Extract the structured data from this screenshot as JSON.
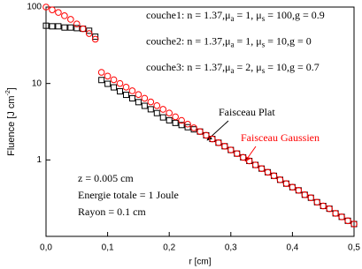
{
  "chart_data": {
    "type": "scatter",
    "xlabel": "r [cm]",
    "ylabel_parts": [
      "Fluence [J cm",
      "-2",
      "]"
    ],
    "x": [
      0,
      0.01,
      0.02,
      0.03,
      0.04,
      0.05,
      0.06,
      0.07,
      0.08,
      0.09,
      0.1,
      0.11,
      0.12,
      0.13,
      0.14,
      0.15,
      0.16,
      0.17,
      0.18,
      0.19,
      0.2,
      0.21,
      0.22,
      0.23,
      0.24,
      0.25,
      0.26,
      0.27,
      0.28,
      0.29,
      0.3,
      0.31,
      0.32,
      0.33,
      0.34,
      0.35,
      0.36,
      0.37,
      0.38,
      0.39,
      0.4,
      0.41,
      0.42,
      0.43,
      0.44,
      0.45,
      0.46,
      0.47,
      0.48,
      0.49,
      0.5
    ],
    "series": [
      {
        "name": "Faisceau Plat",
        "color": "#000000",
        "marker": "square",
        "values": [
          57,
          56,
          56,
          54,
          54,
          53,
          52,
          49,
          41,
          11.1,
          9.9,
          8.9,
          7.9,
          7.1,
          6.4,
          5.7,
          5.1,
          4.6,
          4.1,
          3.6,
          3.3,
          3.05,
          2.86,
          2.68,
          2.51,
          2.35,
          2.1,
          1.88,
          1.68,
          1.51,
          1.35,
          1.21,
          1.08,
          0.97,
          0.86,
          0.77,
          0.69,
          0.62,
          0.55,
          0.49,
          0.44,
          0.4,
          0.35,
          0.32,
          0.28,
          0.25,
          0.23,
          0.2,
          0.18,
          0.16,
          0.145
        ]
      },
      {
        "name": "Faisceau Gaussien",
        "color": "#ff0000",
        "marker": "circle",
        "values": [
          100,
          92,
          85,
          77,
          69,
          60,
          52,
          45,
          38,
          14.0,
          12.5,
          11.2,
          10.0,
          8.96,
          8.02,
          7.17,
          6.41,
          5.74,
          5.13,
          4.59,
          4.11,
          3.67,
          3.29,
          2.94,
          2.63,
          2.35,
          2.1,
          1.88,
          1.68,
          1.51,
          1.35,
          1.21,
          1.08,
          0.97,
          0.86,
          0.77,
          0.69,
          0.62,
          0.55,
          0.49,
          0.44,
          0.4,
          0.35,
          0.32,
          0.28,
          0.25,
          0.23,
          0.2,
          0.18,
          0.16,
          0.145
        ]
      }
    ],
    "xlim": [
      0,
      0.5
    ],
    "xticks": [
      {
        "value": 0,
        "label": "0,0"
      },
      {
        "value": 0.1,
        "label": "0,1"
      },
      {
        "value": 0.2,
        "label": "0,2"
      },
      {
        "value": 0.3,
        "label": "0,3"
      },
      {
        "value": 0.4,
        "label": "0,4"
      },
      {
        "value": 0.5,
        "label": "0,5"
      }
    ],
    "ylim": [
      0.1,
      100
    ],
    "yticks": [
      1,
      10,
      100
    ],
    "log_y": true,
    "grid": false,
    "layer_notes": [
      [
        "couche1: n = 1.37,μ",
        "a",
        " = 1, μ",
        "s",
        " = 100,g = 0.9"
      ],
      [
        "couche2: n = 1.37,μ",
        "a",
        " = 1, μ",
        "s",
        " = 10,g = 0"
      ],
      [
        "couche3: n = 1.37,μ",
        "a",
        " = 2, μ",
        "s",
        " = 10,g = 0.7"
      ]
    ],
    "beam_notes": [
      "z = 0.005 cm",
      "Energie totale = 1 Joule",
      "Rayon = 0.1 cm"
    ]
  }
}
